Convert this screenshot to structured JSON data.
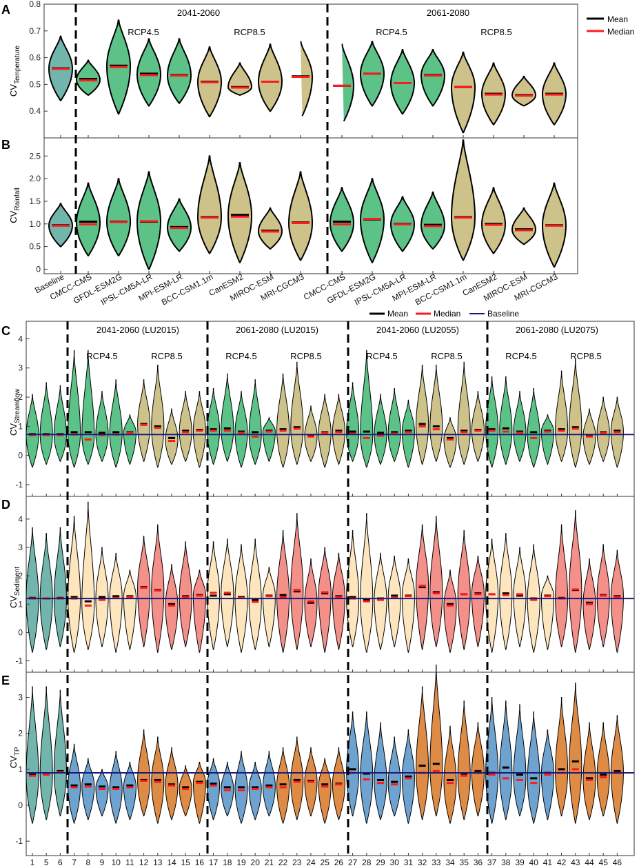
{
  "figure": {
    "panels": {
      "A": {
        "letter": "A",
        "ylabel_main": "CV",
        "ylabel_sub": "Temperature"
      },
      "B": {
        "letter": "B",
        "ylabel_main": "CV",
        "ylabel_sub": "Rainfall"
      },
      "C": {
        "letter": "C",
        "ylabel_main": "CV",
        "ylabel_sub": "Streamflow"
      },
      "D": {
        "letter": "D",
        "ylabel_main": "CV",
        "ylabel_sub": "Sediment"
      },
      "E": {
        "letter": "E",
        "ylabel_main": "CV",
        "ylabel_sub": "TP"
      }
    },
    "top_periods": [
      "2041-2060",
      "2061-2080"
    ],
    "bottom_periods": [
      "2041-2060 (LU2015)",
      "2061-2080 (LU2015)",
      "2041-2060 (LU2055)",
      "2061-2080 (LU2075)"
    ],
    "scenarios": [
      "RCP4.5",
      "RCP8.5"
    ],
    "legend_top": {
      "mean": "Mean",
      "median": "Median"
    },
    "legend_bottom": {
      "mean": "Mean",
      "median": "Median",
      "baseline": "Baseline"
    },
    "top_categories": [
      "Baseline",
      "CMCC-CMS",
      "GFDL-ESM2G",
      "IPSL-CM5A-LR",
      "MPI-ESM-LR",
      "BCC-CSM1.1m",
      "CanESM2",
      "MIROC-ESM",
      "MRI-CGCM3",
      "CMCC-CMS",
      "GFDL-ESM2G",
      "IPSL-CM5A-LR",
      "MPI-ESM-LR",
      "BCC-CSM1.1m",
      "CanESM2",
      "MIROC-ESM",
      "MRI-CGCM3"
    ],
    "bottom_categories": [
      "1",
      "5",
      "6",
      "7",
      "8",
      "9",
      "10",
      "11",
      "12",
      "13",
      "14",
      "15",
      "16",
      "17",
      "18",
      "19",
      "20",
      "21",
      "22",
      "23",
      "24",
      "25",
      "26",
      "27",
      "28",
      "29",
      "30",
      "31",
      "32",
      "33",
      "34",
      "35",
      "36",
      "37",
      "38",
      "39",
      "40",
      "41",
      "42",
      "43",
      "44",
      "45",
      "46"
    ]
  },
  "colors": {
    "baseline_fill": "#72b5ad",
    "rcp45_fill": "#5cc288",
    "rcp85_fill": "#ccc28a",
    "sed45_fill": "#fde6bd",
    "sed85_fill": "#f39089",
    "tp45_fill": "#6ea3d0",
    "tp85_fill": "#de8b45",
    "mean": "#000000",
    "median": "#ff1a1a",
    "baseline_line": "#1a1a80"
  },
  "chart_data": [
    {
      "type": "violin",
      "panel": "A",
      "title": "CV Temperature",
      "ylim": [
        0.3,
        0.8
      ],
      "yticks": [
        0.4,
        0.5,
        0.6,
        0.7,
        0.8
      ],
      "min": [
        0.44,
        0.46,
        0.39,
        0.42,
        0.43,
        0.38,
        0.46,
        0.4,
        0.37,
        0.35,
        0.42,
        0.39,
        0.42,
        0.32,
        0.35,
        0.42,
        0.35
      ],
      "max": [
        0.68,
        0.59,
        0.74,
        0.67,
        0.67,
        0.64,
        0.58,
        0.65,
        0.66,
        0.65,
        0.66,
        0.63,
        0.63,
        0.62,
        0.58,
        0.53,
        0.58
      ],
      "mean": [
        0.56,
        0.52,
        0.57,
        0.54,
        0.535,
        0.51,
        0.49,
        0.51,
        0.53,
        0.495,
        0.54,
        0.505,
        0.535,
        0.49,
        0.465,
        0.46,
        0.465
      ],
      "median": [
        0.558,
        0.515,
        0.565,
        0.535,
        0.533,
        0.508,
        0.488,
        0.51,
        0.528,
        0.495,
        0.54,
        0.505,
        0.533,
        0.49,
        0.462,
        0.458,
        0.462
      ]
    },
    {
      "type": "violin",
      "panel": "B",
      "title": "CV Rainfall",
      "ylim": [
        -0.1,
        2.9
      ],
      "yticks": [
        0,
        0.5,
        1.0,
        1.5,
        2.0,
        2.5
      ],
      "min": [
        0.5,
        0.3,
        0.3,
        0.0,
        0.4,
        0.35,
        0.15,
        0.45,
        0.2,
        0.4,
        0.15,
        0.4,
        0.45,
        0.2,
        0.35,
        0.55,
        0.05
      ],
      "max": [
        1.45,
        1.9,
        2.0,
        2.15,
        1.55,
        2.5,
        2.35,
        1.35,
        2.15,
        1.8,
        2.0,
        1.6,
        1.7,
        2.85,
        1.8,
        1.35,
        1.9
      ],
      "mean": [
        0.97,
        1.05,
        1.05,
        1.05,
        0.93,
        1.15,
        1.2,
        0.85,
        1.03,
        1.05,
        1.1,
        1.0,
        0.98,
        1.15,
        1.0,
        0.88,
        0.97
      ],
      "median": [
        0.96,
        0.99,
        1.04,
        1.06,
        0.91,
        1.14,
        1.16,
        0.83,
        1.02,
        0.99,
        1.11,
        0.99,
        0.95,
        1.14,
        0.98,
        0.86,
        0.96
      ]
    },
    {
      "type": "violin",
      "panel": "C",
      "title": "CV Streamflow",
      "baseline": 0.72,
      "ylim": [
        -1.4,
        4.6
      ],
      "yticks": [
        -1,
        0,
        1,
        2,
        3,
        4
      ],
      "mean": [
        0.73,
        0.73,
        0.73,
        0.8,
        0.8,
        0.78,
        0.8,
        0.8,
        1.08,
        1.0,
        0.6,
        0.85,
        0.88,
        0.9,
        0.93,
        0.82,
        0.8,
        0.85,
        0.9,
        0.97,
        0.7,
        0.8,
        0.85,
        0.82,
        0.82,
        0.78,
        0.8,
        0.85,
        1.08,
        1.0,
        0.6,
        0.85,
        0.88,
        0.9,
        0.93,
        0.82,
        0.8,
        0.85,
        0.9,
        0.97,
        0.7,
        0.8,
        0.85
      ],
      "median": [
        0.7,
        0.7,
        0.7,
        0.72,
        0.55,
        0.7,
        0.72,
        0.78,
        1.05,
        0.95,
        0.5,
        0.8,
        0.85,
        0.85,
        0.85,
        0.78,
        0.65,
        0.82,
        0.85,
        0.92,
        0.65,
        0.78,
        0.8,
        0.75,
        0.6,
        0.68,
        0.75,
        0.8,
        1.0,
        0.9,
        0.55,
        0.8,
        0.85,
        0.85,
        0.82,
        0.78,
        0.6,
        0.82,
        0.85,
        0.92,
        0.65,
        0.78,
        0.8
      ],
      "min": -0.4,
      "max_pattern": [
        2.1,
        2.5,
        2.4,
        3.6,
        3.6,
        2.2,
        2.6,
        1.4,
        2.6,
        3.1,
        1.6,
        2.2,
        2.2,
        2.3,
        2.8,
        2.2,
        2.6,
        1.3,
        2.8,
        3.2,
        1.7,
        2.1,
        2.1,
        2.5,
        3.6,
        2.1,
        2.3,
        1.9,
        3.1,
        3.1,
        1.3,
        3.2,
        2.2,
        2.7,
        2.7,
        2.2,
        2.3,
        1.4,
        2.9,
        3.3,
        1.6,
        2.0,
        2.0
      ]
    },
    {
      "type": "violin",
      "panel": "D",
      "title": "CV Sediment",
      "baseline": 1.2,
      "ylim": [
        -1.4,
        4.8
      ],
      "yticks": [
        -1,
        0,
        1,
        2,
        3,
        4
      ],
      "mean": [
        1.22,
        1.2,
        1.22,
        1.25,
        1.1,
        1.25,
        1.28,
        1.28,
        1.6,
        1.5,
        1.0,
        1.28,
        1.32,
        1.3,
        1.35,
        1.25,
        1.15,
        1.3,
        1.32,
        1.45,
        1.05,
        1.38,
        1.28,
        1.25,
        1.15,
        1.2,
        1.3,
        1.3,
        1.6,
        1.42,
        1.0,
        1.35,
        1.38,
        1.35,
        1.38,
        1.3,
        1.2,
        1.3,
        1.22,
        1.5,
        1.05,
        1.32,
        1.28
      ],
      "median": [
        1.2,
        1.2,
        1.2,
        1.2,
        0.95,
        1.15,
        1.22,
        1.25,
        1.58,
        1.48,
        0.95,
        1.25,
        1.3,
        1.4,
        1.4,
        1.22,
        1.08,
        1.28,
        1.25,
        1.5,
        1.1,
        1.42,
        1.25,
        1.2,
        1.1,
        1.15,
        1.22,
        1.28,
        1.65,
        1.38,
        0.95,
        1.35,
        1.35,
        1.35,
        1.32,
        1.35,
        1.15,
        1.28,
        1.2,
        1.52,
        1.0,
        1.3,
        1.25
      ],
      "min": -0.7,
      "max_pattern": [
        3.7,
        3.5,
        3.7,
        4.1,
        4.6,
        3.0,
        2.8,
        2.2,
        3.4,
        3.8,
        2.4,
        3.2,
        2.2,
        3.2,
        3.3,
        3.1,
        3.3,
        2.3,
        3.6,
        4.2,
        2.6,
        3.0,
        2.8,
        3.6,
        4.2,
        2.8,
        2.7,
        2.6,
        3.8,
        4.1,
        2.2,
        3.6,
        2.7,
        3.3,
        3.5,
        3.0,
        3.1,
        2.0,
        3.8,
        4.3,
        2.6,
        3.1,
        2.9
      ]
    },
    {
      "type": "violin",
      "panel": "E",
      "title": "CV TP",
      "baseline": 0.9,
      "ylim": [
        -1.4,
        3.7
      ],
      "yticks": [
        -1,
        0,
        1,
        2,
        3
      ],
      "mean": [
        0.85,
        0.88,
        0.95,
        0.55,
        0.58,
        0.52,
        0.5,
        0.55,
        0.7,
        0.7,
        0.58,
        0.5,
        0.65,
        0.6,
        0.5,
        0.5,
        0.5,
        0.55,
        0.58,
        0.7,
        0.68,
        0.58,
        0.6,
        1.0,
        0.88,
        0.7,
        0.65,
        0.8,
        1.1,
        1.15,
        0.7,
        0.88,
        0.95,
        0.9,
        1.05,
        0.85,
        0.75,
        0.9,
        1.0,
        1.22,
        0.75,
        0.85,
        0.95
      ],
      "median": [
        0.82,
        0.85,
        0.92,
        0.5,
        0.52,
        0.45,
        0.45,
        0.5,
        0.68,
        0.65,
        0.55,
        0.45,
        0.62,
        0.55,
        0.42,
        0.42,
        0.45,
        0.5,
        0.5,
        0.65,
        0.65,
        0.52,
        0.58,
        0.9,
        0.72,
        0.62,
        0.58,
        0.75,
        0.9,
        0.95,
        0.62,
        0.82,
        0.9,
        0.85,
        0.75,
        0.7,
        0.62,
        0.85,
        0.9,
        1.0,
        0.7,
        0.78,
        0.9
      ],
      "min": -0.5,
      "max_pattern": [
        3.3,
        3.3,
        3.2,
        1.7,
        1.3,
        1.0,
        1.5,
        1.2,
        2.1,
        1.9,
        1.6,
        1.1,
        1.2,
        1.3,
        1.2,
        1.5,
        1.2,
        1.5,
        1.6,
        1.9,
        1.6,
        1.3,
        1.6,
        2.6,
        2.6,
        2.3,
        1.9,
        2.1,
        3.3,
        3.9,
        2.2,
        2.9,
        2.3,
        3.0,
        2.9,
        2.8,
        2.6,
        2.1,
        3.0,
        3.4,
        2.3,
        2.3,
        2.5
      ]
    }
  ]
}
